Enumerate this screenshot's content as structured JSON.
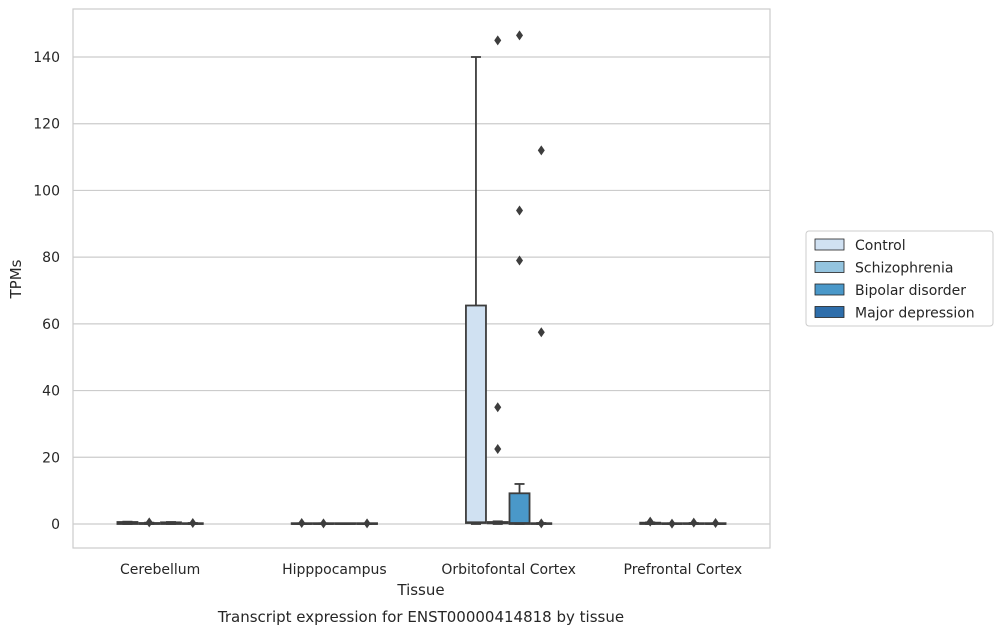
{
  "caption": "Transcript expression for ENST00000414818 by tissue",
  "chart_data": {
    "type": "box",
    "xlabel": "Tissue",
    "ylabel": "TPMs",
    "ylim": [
      -7,
      155
    ],
    "yticks": [
      0,
      20,
      40,
      60,
      80,
      100,
      120,
      140
    ],
    "grid": "horizontal",
    "legend_position": "right",
    "categories": [
      "Cerebellum",
      "Hipppocampus",
      "Orbitofontal Cortex",
      "Prefrontal Cortex"
    ],
    "series": [
      {
        "name": "Control",
        "color": "#d0e1f2",
        "boxes": [
          {
            "q1": 0,
            "median": 0.3,
            "q3": 0.6,
            "whisker_low": 0,
            "whisker_high": 0.7,
            "outliers": []
          },
          {
            "q1": 0,
            "median": 0,
            "q3": 0.1,
            "whisker_low": 0,
            "whisker_high": 0.2,
            "outliers": [
              0.3
            ]
          },
          {
            "q1": 0.3,
            "median": 0.5,
            "q3": 65.5,
            "whisker_low": 0,
            "whisker_high": 140,
            "outliers": []
          },
          {
            "q1": 0,
            "median": 0.2,
            "q3": 0.4,
            "whisker_low": 0,
            "whisker_high": 0.5,
            "outliers": [
              0.7
            ]
          }
        ]
      },
      {
        "name": "Schizophrenia",
        "color": "#94c4df",
        "boxes": [
          {
            "q1": 0,
            "median": 0.1,
            "q3": 0.3,
            "whisker_low": 0,
            "whisker_high": 0.4,
            "outliers": [
              0.5
            ]
          },
          {
            "q1": 0,
            "median": 0,
            "q3": 0.1,
            "whisker_low": 0,
            "whisker_high": 0.2,
            "outliers": [
              0.2
            ]
          },
          {
            "q1": 0.2,
            "median": 0.4,
            "q3": 0.6,
            "whisker_low": 0,
            "whisker_high": 0.8,
            "outliers": [
              145,
              35,
              22.5
            ]
          },
          {
            "q1": 0,
            "median": 0,
            "q3": 0.1,
            "whisker_low": 0,
            "whisker_high": 0.2,
            "outliers": [
              0.1
            ]
          }
        ]
      },
      {
        "name": "Bipolar disorder",
        "color": "#4a98c9",
        "boxes": [
          {
            "q1": 0,
            "median": 0.2,
            "q3": 0.5,
            "whisker_low": 0,
            "whisker_high": 0.6,
            "outliers": []
          },
          {
            "q1": 0,
            "median": 0,
            "q3": 0.1,
            "whisker_low": 0,
            "whisker_high": 0.1,
            "outliers": []
          },
          {
            "q1": 0,
            "median": 0.3,
            "q3": 9.2,
            "whisker_low": 0,
            "whisker_high": 12,
            "outliers": [
              146.5,
              94,
              79
            ]
          },
          {
            "q1": 0,
            "median": 0.1,
            "q3": 0.2,
            "whisker_low": 0,
            "whisker_high": 0.3,
            "outliers": [
              0.4
            ]
          }
        ]
      },
      {
        "name": "Major depression",
        "color": "#2e6eab",
        "boxes": [
          {
            "q1": 0,
            "median": 0.1,
            "q3": 0.2,
            "whisker_low": 0,
            "whisker_high": 0.3,
            "outliers": [
              0.3
            ]
          },
          {
            "q1": 0,
            "median": 0,
            "q3": 0.1,
            "whisker_low": 0,
            "whisker_high": 0.1,
            "outliers": [
              0.2
            ]
          },
          {
            "q1": 0,
            "median": 0.1,
            "q3": 0.2,
            "whisker_low": 0,
            "whisker_high": 0.3,
            "outliers": [
              112,
              57.5,
              0.2
            ]
          },
          {
            "q1": 0,
            "median": 0,
            "q3": 0.1,
            "whisker_low": 0,
            "whisker_high": 0.2,
            "outliers": [
              0.3
            ]
          }
        ]
      }
    ]
  }
}
